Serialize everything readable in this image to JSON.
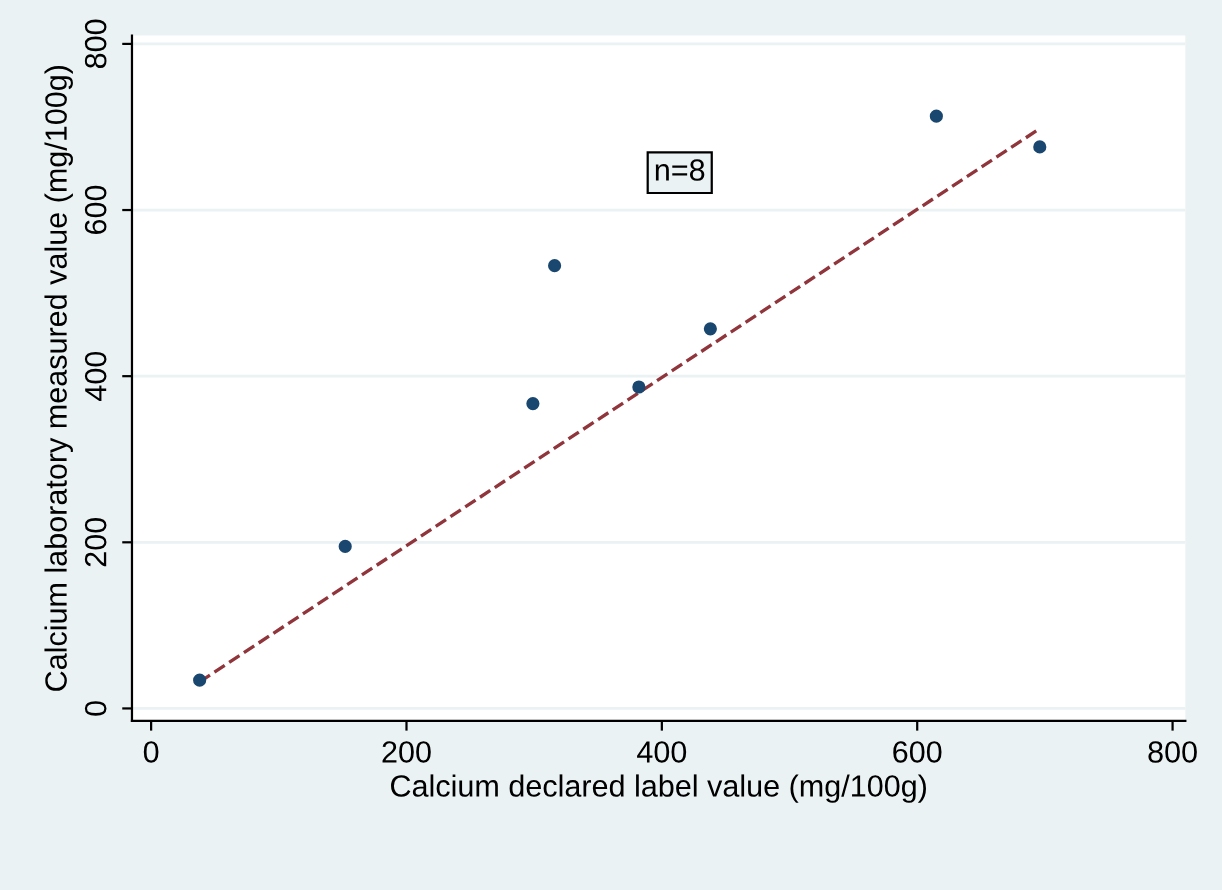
{
  "chart_data": {
    "type": "scatter",
    "xlabel": "Calcium declared label value (mg/100g)",
    "ylabel": "Calcium laboratory measured value (mg/100g)",
    "x": [
      38,
      152,
      299,
      316,
      382,
      438,
      615,
      696
    ],
    "series": [
      {
        "color": "#1a476f",
        "marker": "circle",
        "values": [
          34,
          195,
          367,
          533,
          387,
          457,
          713,
          676
        ]
      },
      {
        "type": "line",
        "color": "#90353b",
        "line_style": "dashed",
        "marker": "none",
        "x": [
          38,
          696
        ],
        "values": [
          32,
          698
        ]
      }
    ],
    "xlim": [
      -15,
      810
    ],
    "ylim": [
      -15,
      810
    ],
    "xticks": [
      0,
      200,
      400,
      600,
      800
    ],
    "yticks": [
      0,
      200,
      400,
      600,
      800
    ],
    "grid": "y",
    "annotations": [
      "n=8"
    ]
  }
}
